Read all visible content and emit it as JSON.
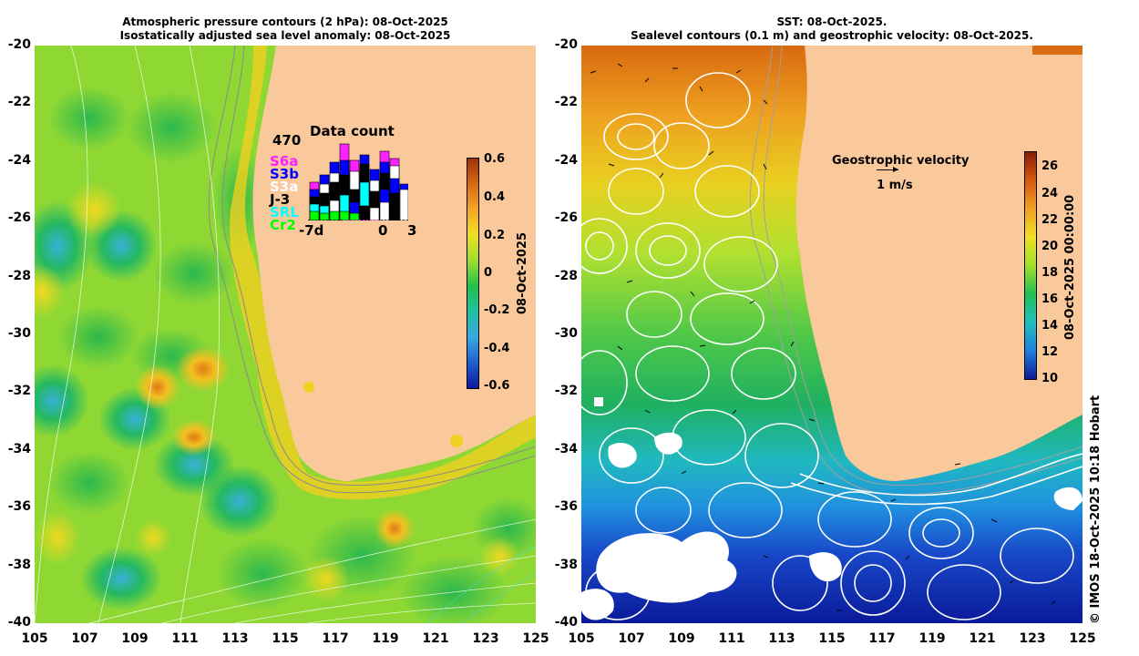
{
  "left_panel": {
    "title_line1": "Atmospheric pressure contours (2 hPa): 08-Oct-2025",
    "title_line2": "Isostatically adjusted sea level anomaly: 08-Oct-2025",
    "colorbar": {
      "ticks": [
        "0.6",
        "0.4",
        "0.2",
        "0",
        "-0.2",
        "-0.4",
        "-0.6"
      ],
      "date_label": "08-Oct-2025",
      "colors": [
        "#a03008",
        "#d86a10",
        "#f5a623",
        "#f0e020",
        "#9ce02a",
        "#22c04a",
        "#20c0a0",
        "#38a8e0",
        "#2060d0",
        "#0a1a9a"
      ]
    },
    "data_count": {
      "title": "Data count",
      "max_label": "470",
      "x_labels": [
        "-7d",
        "0",
        "3"
      ],
      "satellites": [
        {
          "name": "S6a",
          "color": "#ff20ff"
        },
        {
          "name": "S3b",
          "color": "#0000ff"
        },
        {
          "name": "S3a",
          "color": "#ffffff"
        },
        {
          "name": "J-3",
          "color": "#000000"
        },
        {
          "name": "SRL",
          "color": "#00ffff"
        },
        {
          "name": "Cr2",
          "color": "#00ff00"
        }
      ]
    }
  },
  "right_panel": {
    "title_line1": "SST: 08-Oct-2025.",
    "title_line2": "Sealevel contours (0.1 m) and geostrophic velocity: 08-Oct-2025.",
    "velocity_legend": {
      "label": "Geostrophic velocity",
      "scale": "1 m/s"
    },
    "colorbar": {
      "ticks": [
        "26",
        "24",
        "22",
        "20",
        "18",
        "16",
        "14",
        "12",
        "10"
      ],
      "date_label": "08-Oct-2025 00:00:00",
      "colors": [
        "#8a1a08",
        "#d85a10",
        "#f0a020",
        "#f0e020",
        "#a0e02a",
        "#20c050",
        "#20c0c0",
        "#2080e0",
        "#0a1a9a"
      ]
    }
  },
  "axes": {
    "y_ticks": [
      "-20",
      "-22",
      "-24",
      "-26",
      "-28",
      "-30",
      "-32",
      "-34",
      "-36",
      "-38",
      "-40"
    ],
    "x_ticks": [
      "105",
      "107",
      "109",
      "111",
      "113",
      "115",
      "117",
      "119",
      "121",
      "123",
      "125"
    ]
  },
  "credit": "© IMOS 18-Oct-2025 10:18 Hobart"
}
